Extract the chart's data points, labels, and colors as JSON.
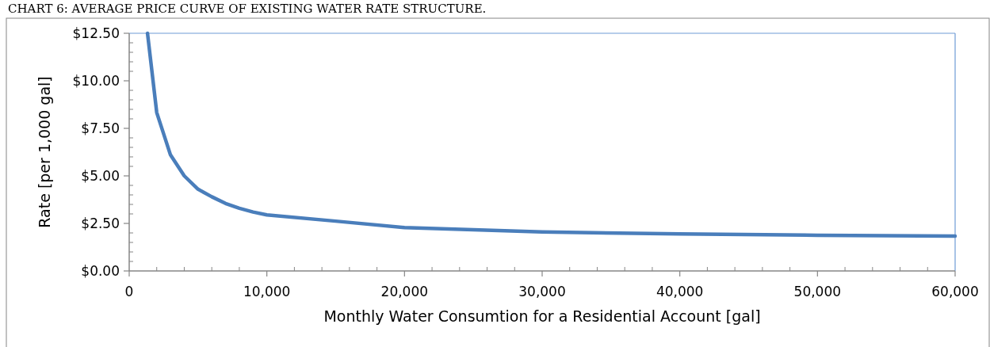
{
  "chart_data": {
    "type": "line",
    "title": "CHART 6: AVERAGE PRICE CURVE OF EXISTING WATER RATE STRUCTURE.",
    "xlabel": "Monthly Water Consumtion for a Residential Account [gal]",
    "ylabel": "Rate [per 1,000 gal]",
    "x": [
      1330,
      2000,
      3000,
      4000,
      5000,
      6000,
      7000,
      8000,
      9000,
      10000,
      15000,
      20000,
      30000,
      40000,
      50000,
      60000
    ],
    "series": [
      {
        "color": "#4a7ebb",
        "values": [
          12.5,
          8.33,
          6.1,
          5.0,
          4.3,
          3.9,
          3.55,
          3.3,
          3.1,
          2.95,
          2.62,
          2.28,
          2.05,
          1.95,
          1.88,
          1.83
        ]
      }
    ],
    "xlim": [
      0,
      60000
    ],
    "xticks": [
      {
        "value": 0,
        "label": "0"
      },
      {
        "value": 10000,
        "label": "10,000"
      },
      {
        "value": 20000,
        "label": "20,000"
      },
      {
        "value": 30000,
        "label": "30,000"
      },
      {
        "value": 40000,
        "label": "40,000"
      },
      {
        "value": 50000,
        "label": "50,000"
      },
      {
        "value": 60000,
        "label": "60,000"
      }
    ],
    "ylim": [
      0,
      12.5
    ],
    "yticks": [
      {
        "value": 0,
        "label": "$0.00"
      },
      {
        "value": 2.5,
        "label": "$2.50"
      },
      {
        "value": 5,
        "label": "$5.00"
      },
      {
        "value": 7.5,
        "label": "$7.50"
      },
      {
        "value": 10,
        "label": "$10.00"
      },
      {
        "value": 12.5,
        "label": "$12.50"
      }
    ],
    "grid": false,
    "marker": "none",
    "line_style": "solid"
  }
}
